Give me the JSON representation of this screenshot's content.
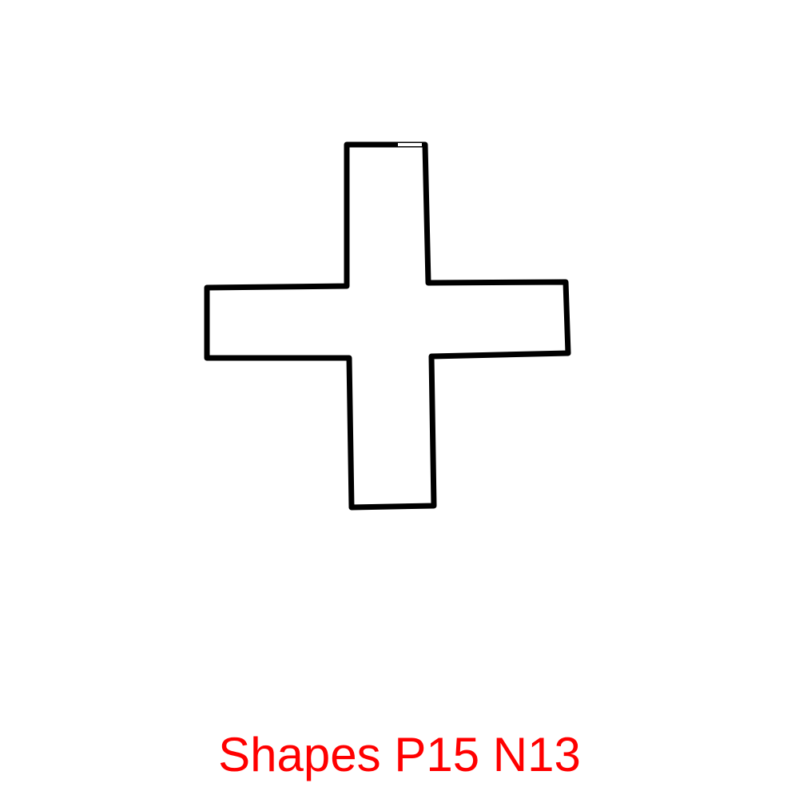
{
  "figure": {
    "shape": "plus-cross",
    "stroke_color": "#000000",
    "fill_color": "#ffffff"
  },
  "caption": {
    "text": "Shapes P15 N13",
    "color": "#ff0000"
  }
}
